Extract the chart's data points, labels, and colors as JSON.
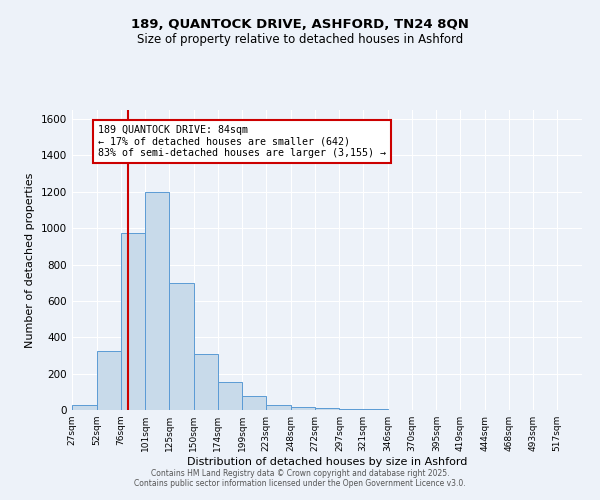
{
  "title_line1": "189, QUANTOCK DRIVE, ASHFORD, TN24 8QN",
  "title_line2": "Size of property relative to detached houses in Ashford",
  "xlabel": "Distribution of detached houses by size in Ashford",
  "ylabel": "Number of detached properties",
  "bar_labels": [
    "27sqm",
    "52sqm",
    "76sqm",
    "101sqm",
    "125sqm",
    "150sqm",
    "174sqm",
    "199sqm",
    "223sqm",
    "248sqm",
    "272sqm",
    "297sqm",
    "321sqm",
    "346sqm",
    "370sqm",
    "395sqm",
    "419sqm",
    "444sqm",
    "468sqm",
    "493sqm",
    "517sqm"
  ],
  "bar_values": [
    25,
    325,
    975,
    1200,
    700,
    310,
    155,
    75,
    25,
    15,
    10,
    5,
    3,
    2,
    2,
    1,
    1,
    1,
    1,
    0,
    1
  ],
  "bar_color": "#c8daea",
  "bar_edge_color": "#5b9bd5",
  "bin_edges": [
    27,
    52,
    76,
    101,
    125,
    150,
    174,
    199,
    223,
    248,
    272,
    297,
    321,
    346,
    370,
    395,
    419,
    444,
    468,
    493,
    517,
    542
  ],
  "vline_x": 84,
  "vline_color": "#cc0000",
  "annotation_title": "189 QUANTOCK DRIVE: 84sqm",
  "annotation_line1": "← 17% of detached houses are smaller (642)",
  "annotation_line2": "83% of semi-detached houses are larger (3,155) →",
  "annotation_box_facecolor": "#ffffff",
  "annotation_box_edgecolor": "#cc0000",
  "ylim": [
    0,
    1650
  ],
  "yticks": [
    0,
    200,
    400,
    600,
    800,
    1000,
    1200,
    1400,
    1600
  ],
  "bg_color": "#edf2f9",
  "grid_color": "#ffffff",
  "footer1": "Contains HM Land Registry data © Crown copyright and database right 2025.",
  "footer2": "Contains public sector information licensed under the Open Government Licence v3.0."
}
